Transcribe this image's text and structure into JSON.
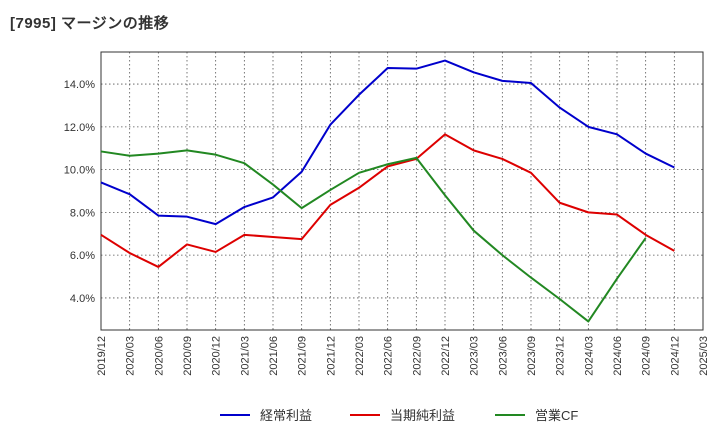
{
  "chart_data": {
    "type": "line",
    "title": "[7995]  マージンの推移",
    "x": [
      "2019/12",
      "2020/03",
      "2020/06",
      "2020/09",
      "2020/12",
      "2021/03",
      "2021/06",
      "2021/09",
      "2021/12",
      "2022/03",
      "2022/06",
      "2022/09",
      "2022/12",
      "2023/03",
      "2023/06",
      "2023/09",
      "2023/12",
      "2024/03",
      "2024/06",
      "2024/09",
      "2024/12",
      "2025/03"
    ],
    "ylim": [
      2.5,
      15.5
    ],
    "yticks": [
      4.0,
      6.0,
      8.0,
      10.0,
      12.0,
      14.0
    ],
    "ytick_labels": [
      "4.0%",
      "6.0%",
      "8.0%",
      "10.0%",
      "12.0%",
      "14.0%"
    ],
    "grid": true,
    "legend_position": "bottom",
    "series": [
      {
        "name": "経常利益",
        "color": "#0000cc",
        "values": [
          9.4,
          8.85,
          7.85,
          7.8,
          7.45,
          8.25,
          8.7,
          9.9,
          12.1,
          13.5,
          14.75,
          14.72,
          15.1,
          14.55,
          14.15,
          14.05,
          12.9,
          12.0,
          11.65,
          10.75,
          10.1,
          null
        ]
      },
      {
        "name": "当期純利益",
        "color": "#dd0000",
        "values": [
          6.95,
          6.1,
          5.45,
          6.5,
          6.15,
          6.95,
          6.85,
          6.75,
          8.35,
          9.15,
          10.15,
          10.5,
          11.65,
          10.9,
          10.5,
          9.85,
          8.45,
          8.0,
          7.9,
          6.95,
          6.2,
          null
        ]
      },
      {
        "name": "営業CF",
        "color": "#228822",
        "values": [
          10.85,
          10.65,
          10.75,
          10.9,
          10.7,
          10.3,
          9.3,
          8.2,
          9.05,
          9.85,
          10.25,
          10.55,
          8.8,
          7.15,
          6.0,
          4.95,
          3.95,
          2.9,
          4.9,
          6.8,
          null,
          null
        ]
      }
    ]
  }
}
